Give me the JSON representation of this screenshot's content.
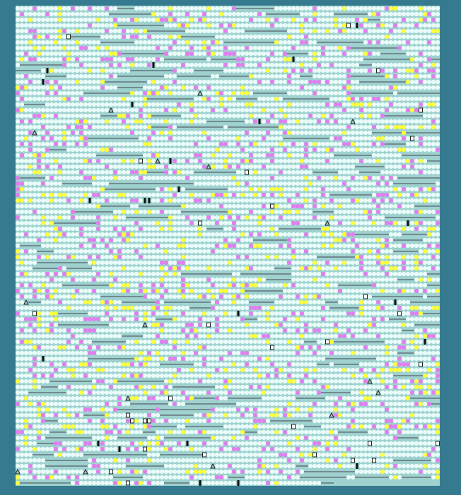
{
  "board": {
    "columns": 100,
    "rows": 85
  }
}
